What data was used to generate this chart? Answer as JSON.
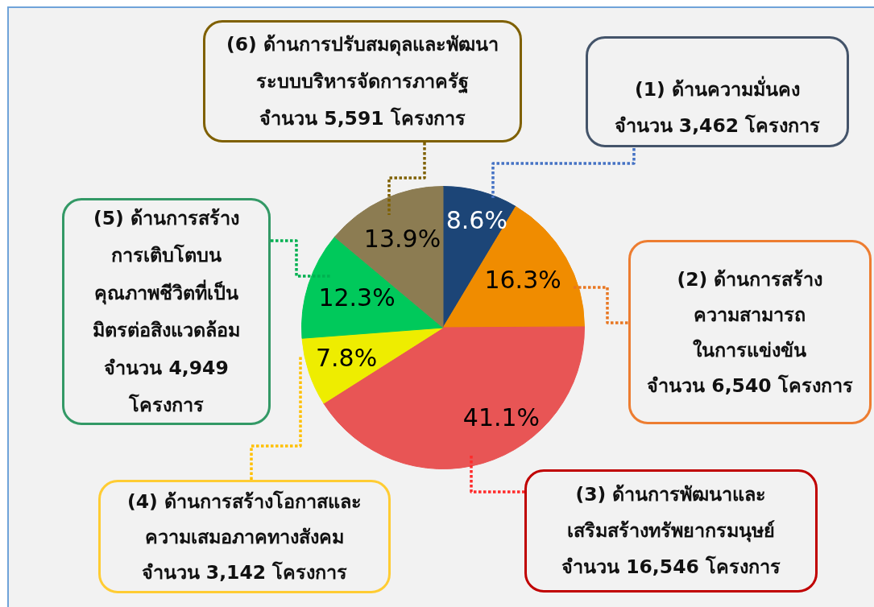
{
  "chart_data": {
    "type": "pie",
    "categories": [
      "(1) ด้านความมั่นคง\nจำนวน 3,462 โครงการ",
      "(2) ด้านการสร้าง\nความสามารถ\nในการแข่งขัน\nจำนวน 6,540 โครงการ",
      "(3) ด้านการพัฒนาและ\nเสริมสร้างทรัพยากรมนุษย์\nจำนวน 16,546 โครงการ",
      "(4) ด้านการสร้างโอกาสและ\nความเสมอภาคทางสังคม\nจำนวน 3,142 โครงการ",
      "(5) ด้านการสร้าง\nการเติบโตบน\nคุณภาพชีวิตที่เป็น\nมิตรต่อสิงแวดล้อม\nจำนวน 4,949\nโครงการ",
      "(6) ด้านการปรับสมดุลและพัฒนา\nระบบบริหารจัดการภาครัฐ\nจำนวน 5,591 โครงการ"
    ],
    "values": [
      8.6,
      16.3,
      41.1,
      7.8,
      12.3,
      13.9
    ],
    "colors": [
      "#1c4577",
      "#f08c00",
      "#e85555",
      "#eeed00",
      "#00c95b",
      "#8c7c52"
    ],
    "value_labels": [
      "8.6%",
      "16.3%",
      "41.1%",
      "7.8%",
      "12.3%",
      "13.9%"
    ]
  }
}
